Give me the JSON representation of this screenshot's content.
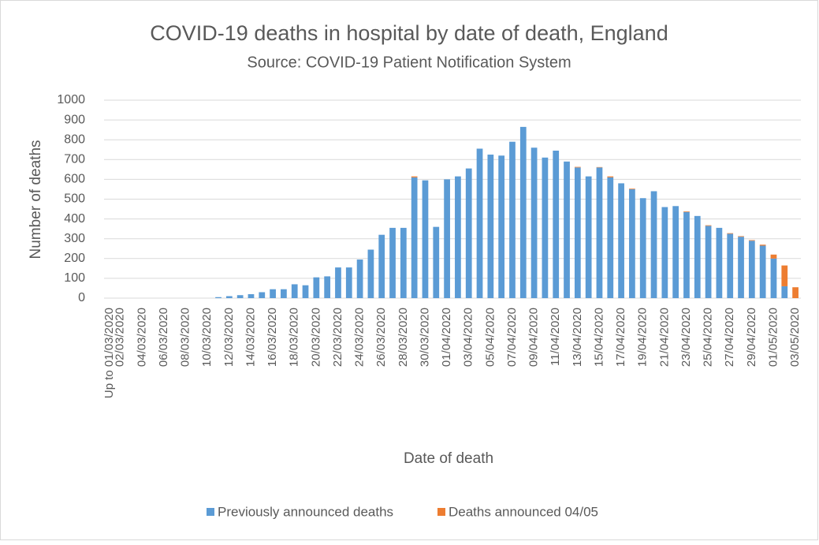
{
  "chart_data": {
    "type": "stacked_bar",
    "title": "COVID-19 deaths in hospital by date of death, England",
    "subtitle": "Source: COVID-19 Patient Notification System",
    "x_label": "Date of death",
    "y_label": "Number of deaths",
    "categories": [
      "Up to 01/03/2020",
      "02/03/2020",
      null,
      "04/03/2020",
      null,
      "06/03/2020",
      null,
      "08/03/2020",
      null,
      "10/03/2020",
      null,
      "12/03/2020",
      null,
      "14/03/2020",
      null,
      "16/03/2020",
      null,
      "18/03/2020",
      null,
      "20/03/2020",
      null,
      "22/03/2020",
      null,
      "24/03/2020",
      null,
      "26/03/2020",
      null,
      "28/03/2020",
      null,
      "30/03/2020",
      null,
      "01/04/2020",
      null,
      "03/04/2020",
      null,
      "05/04/2020",
      null,
      "07/04/2020",
      null,
      "09/04/2020",
      null,
      "11/04/2020",
      null,
      "13/04/2020",
      null,
      "15/04/2020",
      null,
      "17/04/2020",
      null,
      "19/04/2020",
      null,
      "21/04/2020",
      null,
      "23/04/2020",
      null,
      "25/04/2020",
      null,
      "27/04/2020",
      null,
      "29/04/2020",
      null,
      "01/05/2020",
      null,
      "03/05/2020"
    ],
    "series": [
      {
        "name": "Previously announced deaths",
        "color": "#5b9bd5",
        "values": [
          0,
          0,
          0,
          0,
          0,
          0,
          0,
          0,
          0,
          0,
          5,
          10,
          15,
          20,
          30,
          45,
          45,
          70,
          65,
          105,
          110,
          155,
          155,
          195,
          245,
          320,
          355,
          355,
          610,
          595,
          360,
          600,
          615,
          655,
          755,
          725,
          720,
          790,
          865,
          760,
          710,
          745,
          690,
          660,
          615,
          660,
          610,
          580,
          550,
          505,
          540,
          460,
          465,
          435,
          415,
          365,
          355,
          325,
          310,
          290,
          265,
          200,
          60,
          0
        ]
      },
      {
        "name": "Deaths announced 04/05",
        "color": "#ed7d31",
        "values": [
          0,
          0,
          0,
          0,
          0,
          0,
          0,
          0,
          0,
          0,
          0,
          0,
          0,
          0,
          0,
          0,
          0,
          0,
          0,
          0,
          0,
          0,
          0,
          0,
          0,
          0,
          0,
          0,
          5,
          0,
          0,
          0,
          0,
          0,
          0,
          0,
          0,
          0,
          0,
          0,
          0,
          0,
          0,
          3,
          0,
          2,
          5,
          0,
          3,
          0,
          0,
          0,
          0,
          3,
          0,
          3,
          0,
          3,
          3,
          3,
          5,
          20,
          105,
          55
        ]
      }
    ],
    "ylim": [
      0,
      1000
    ],
    "yticks": [
      0,
      100,
      200,
      300,
      400,
      500,
      600,
      700,
      800,
      900,
      1000
    ],
    "grid": true,
    "legend": "bottom"
  }
}
